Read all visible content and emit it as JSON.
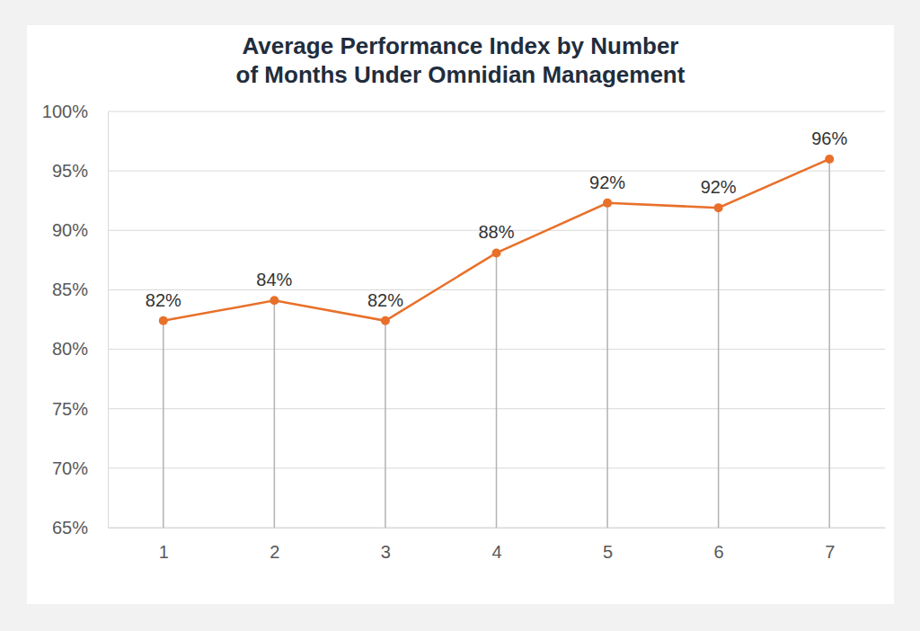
{
  "chart_data": {
    "type": "line",
    "title": "Average Performance Index by Number\nof Months Under Omnidian Management",
    "categories": [
      "1",
      "2",
      "3",
      "4",
      "5",
      "6",
      "7"
    ],
    "values": [
      82.4,
      84.1,
      82.4,
      88.1,
      92.3,
      91.9,
      96.0
    ],
    "value_labels": [
      "82%",
      "84%",
      "82%",
      "88%",
      "92%",
      "92%",
      "96%"
    ],
    "color": "#e8702a",
    "marker": "circle",
    "line_style": "solid",
    "data_labels": true,
    "grid": true,
    "ylim": [
      65,
      100
    ],
    "yticks": [
      {
        "value": 65,
        "label": "65%"
      },
      {
        "value": 70,
        "label": "70%"
      },
      {
        "value": 75,
        "label": "75%"
      },
      {
        "value": 80,
        "label": "80%"
      },
      {
        "value": 85,
        "label": "85%"
      },
      {
        "value": 90,
        "label": "90%"
      },
      {
        "value": 95,
        "label": "95%"
      },
      {
        "value": 100,
        "label": "100%"
      }
    ]
  }
}
